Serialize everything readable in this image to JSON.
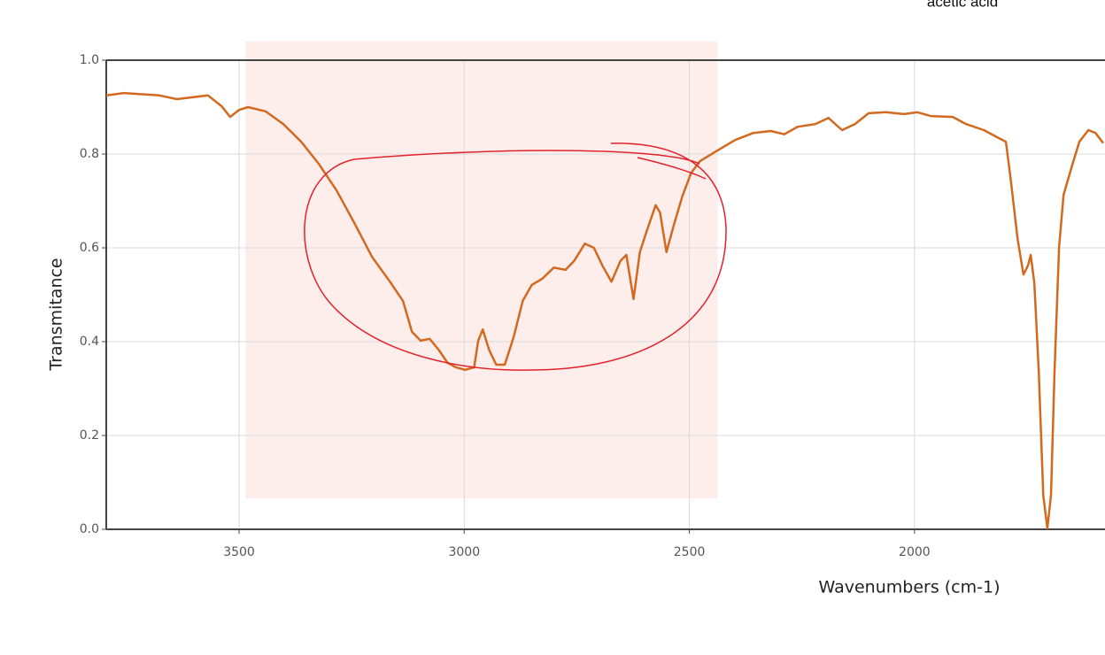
{
  "chart_data": {
    "type": "line",
    "title": "acetic acid",
    "x_label": "Wavenumbers (cm-1)",
    "y_label": "Transmitance",
    "x": [
      3795,
      3756,
      3677,
      3638,
      3569,
      3539,
      3520,
      3500,
      3480,
      3441,
      3402,
      3362,
      3323,
      3284,
      3244,
      3205,
      3165,
      3136,
      3116,
      3097,
      3077,
      3057,
      3037,
      3018,
      2998,
      2978,
      2969,
      2959,
      2945,
      2929,
      2910,
      2890,
      2870,
      2850,
      2827,
      2801,
      2775,
      2756,
      2732,
      2712,
      2693,
      2673,
      2653,
      2640,
      2624,
      2610,
      2594,
      2575,
      2565,
      2551,
      2535,
      2516,
      2496,
      2476,
      2437,
      2398,
      2358,
      2319,
      2289,
      2260,
      2220,
      2191,
      2161,
      2132,
      2102,
      2063,
      2023,
      1994,
      1964,
      1915,
      1886,
      1846,
      1817,
      1797,
      1787,
      1771,
      1758,
      1748,
      1742,
      1734,
      1724,
      1714,
      1705,
      1697,
      1689,
      1679,
      1669,
      1649,
      1634,
      1614,
      1598,
      1581
    ],
    "values": [
      0.925,
      0.93,
      0.925,
      0.917,
      0.925,
      0.902,
      0.879,
      0.894,
      0.9,
      0.891,
      0.864,
      0.826,
      0.779,
      0.723,
      0.653,
      0.581,
      0.528,
      0.487,
      0.421,
      0.402,
      0.406,
      0.383,
      0.355,
      0.345,
      0.34,
      0.345,
      0.402,
      0.426,
      0.383,
      0.351,
      0.351,
      0.411,
      0.487,
      0.521,
      0.534,
      0.558,
      0.553,
      0.572,
      0.609,
      0.6,
      0.562,
      0.528,
      0.572,
      0.585,
      0.491,
      0.591,
      0.638,
      0.691,
      0.675,
      0.591,
      0.647,
      0.709,
      0.76,
      0.785,
      0.808,
      0.83,
      0.845,
      0.849,
      0.842,
      0.858,
      0.864,
      0.877,
      0.851,
      0.864,
      0.887,
      0.889,
      0.885,
      0.889,
      0.881,
      0.879,
      0.864,
      0.851,
      0.836,
      0.826,
      0.751,
      0.619,
      0.543,
      0.562,
      0.585,
      0.525,
      0.336,
      0.072,
      0.002,
      0.072,
      0.336,
      0.6,
      0.713,
      0.779,
      0.826,
      0.851,
      0.845,
      0.823
    ],
    "color": "#d2691e",
    "xlim": [
      3795,
      1577
    ],
    "ylim": [
      0,
      1
    ],
    "xticks": [
      3500,
      3000,
      2500,
      2000
    ],
    "yticks": [
      {
        "value": 0,
        "label": "0.0"
      },
      0.2,
      0.4,
      0.6,
      0.8,
      {
        "value": 1,
        "label": "1.0"
      }
    ],
    "grid": true,
    "highlight": {
      "x": [
        3486,
        2437
      ],
      "y": [
        0.066,
        1.04
      ],
      "color": "#fdeeec"
    }
  }
}
